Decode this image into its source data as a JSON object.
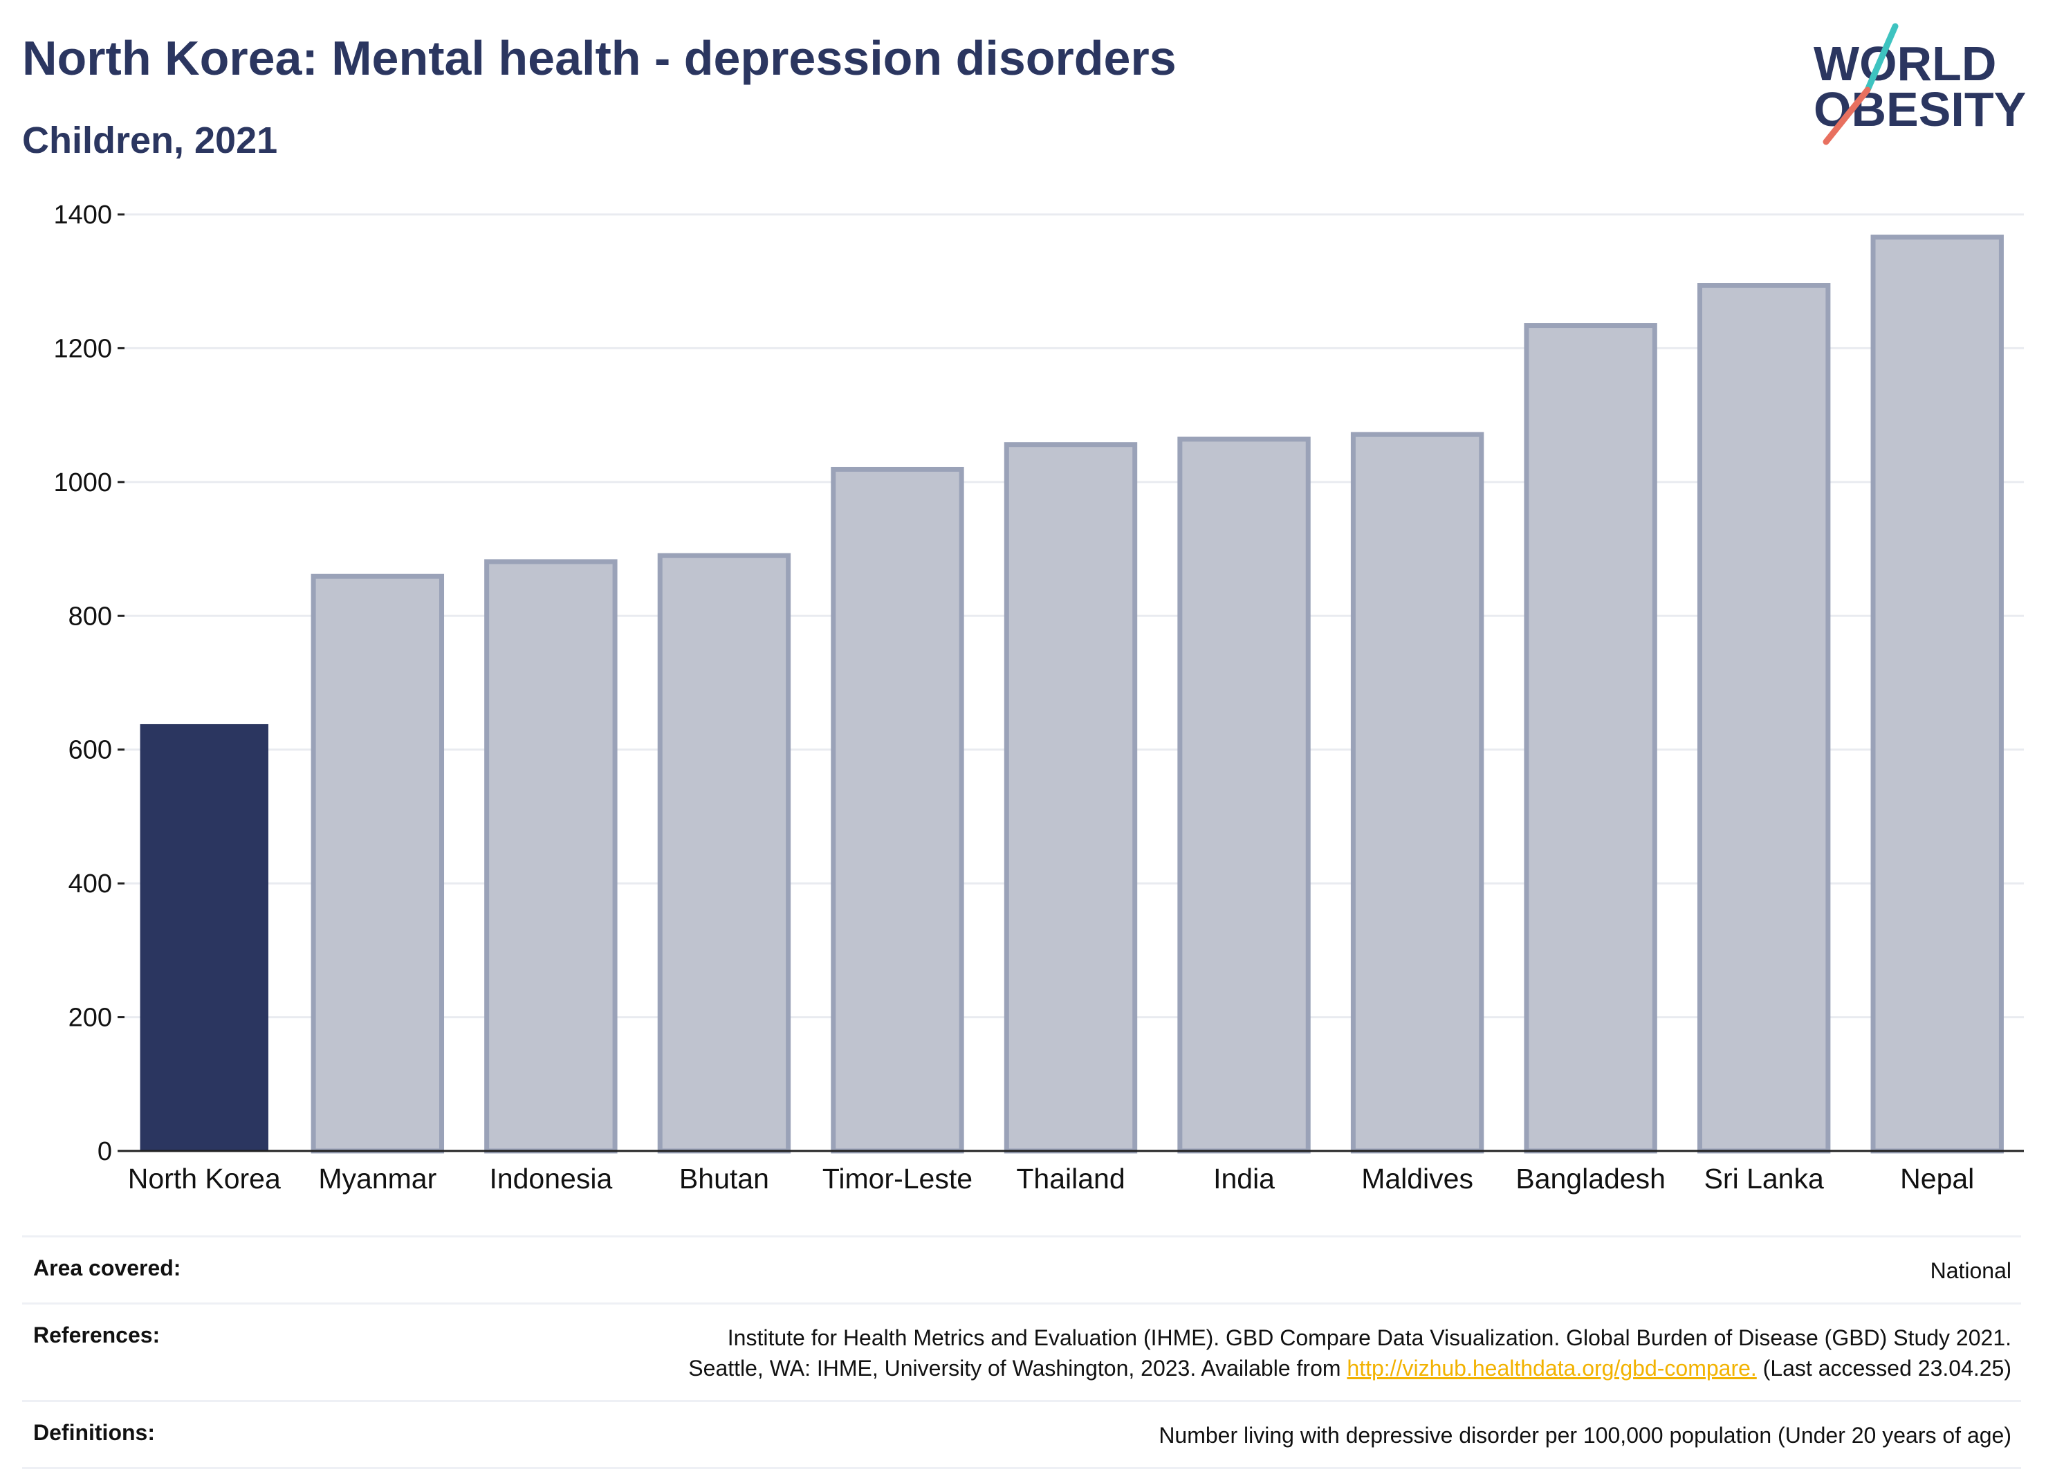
{
  "header": {
    "title": "North Korea: Mental health - depression disorders",
    "subtitle": "Children, 2021"
  },
  "logo": {
    "line1": "WORLD",
    "line2": "OBESITY",
    "colors": {
      "text": "#2b3660",
      "slash_top": "#3ec3c0",
      "slash_bottom": "#e8705f"
    }
  },
  "chart_data": {
    "type": "bar",
    "categories": [
      "North Korea",
      "Myanmar",
      "Indonesia",
      "Bhutan",
      "Timor-Leste",
      "Thailand",
      "India",
      "Maldives",
      "Bangladesh",
      "Sri Lanka",
      "Nepal"
    ],
    "values": [
      638,
      859,
      881,
      890,
      1019,
      1056,
      1064,
      1071,
      1234,
      1294,
      1366
    ],
    "highlight": "North Korea",
    "ylim": [
      0,
      1400
    ],
    "yticks": [
      0,
      200,
      400,
      600,
      800,
      1000,
      1200,
      1400
    ],
    "grid": true,
    "colors": {
      "highlight": "#2b3660",
      "other_fill": "#bfc3cf",
      "other_stroke": "#9aa2b8",
      "grid": "#e9ebf0"
    },
    "xlabel": "",
    "ylabel": ""
  },
  "meta": {
    "area_label": "Area covered:",
    "area_value": "National",
    "references_label": "References:",
    "references_line1": "Institute for Health Metrics and Evaluation (IHME). GBD Compare Data Visualization. Global Burden of Disease (GBD) Study 2021.",
    "references_line2_pre": "Seattle, WA: IHME, University of Washington, 2023. Available from ",
    "references_link": "http://vizhub.healthdata.org/gbd-compare.",
    "references_line2_post": " (Last accessed 23.04.25)",
    "definitions_label": "Definitions:",
    "definitions_value": "Number living with depressive disorder per 100,000 population (Under 20 years of age)"
  }
}
